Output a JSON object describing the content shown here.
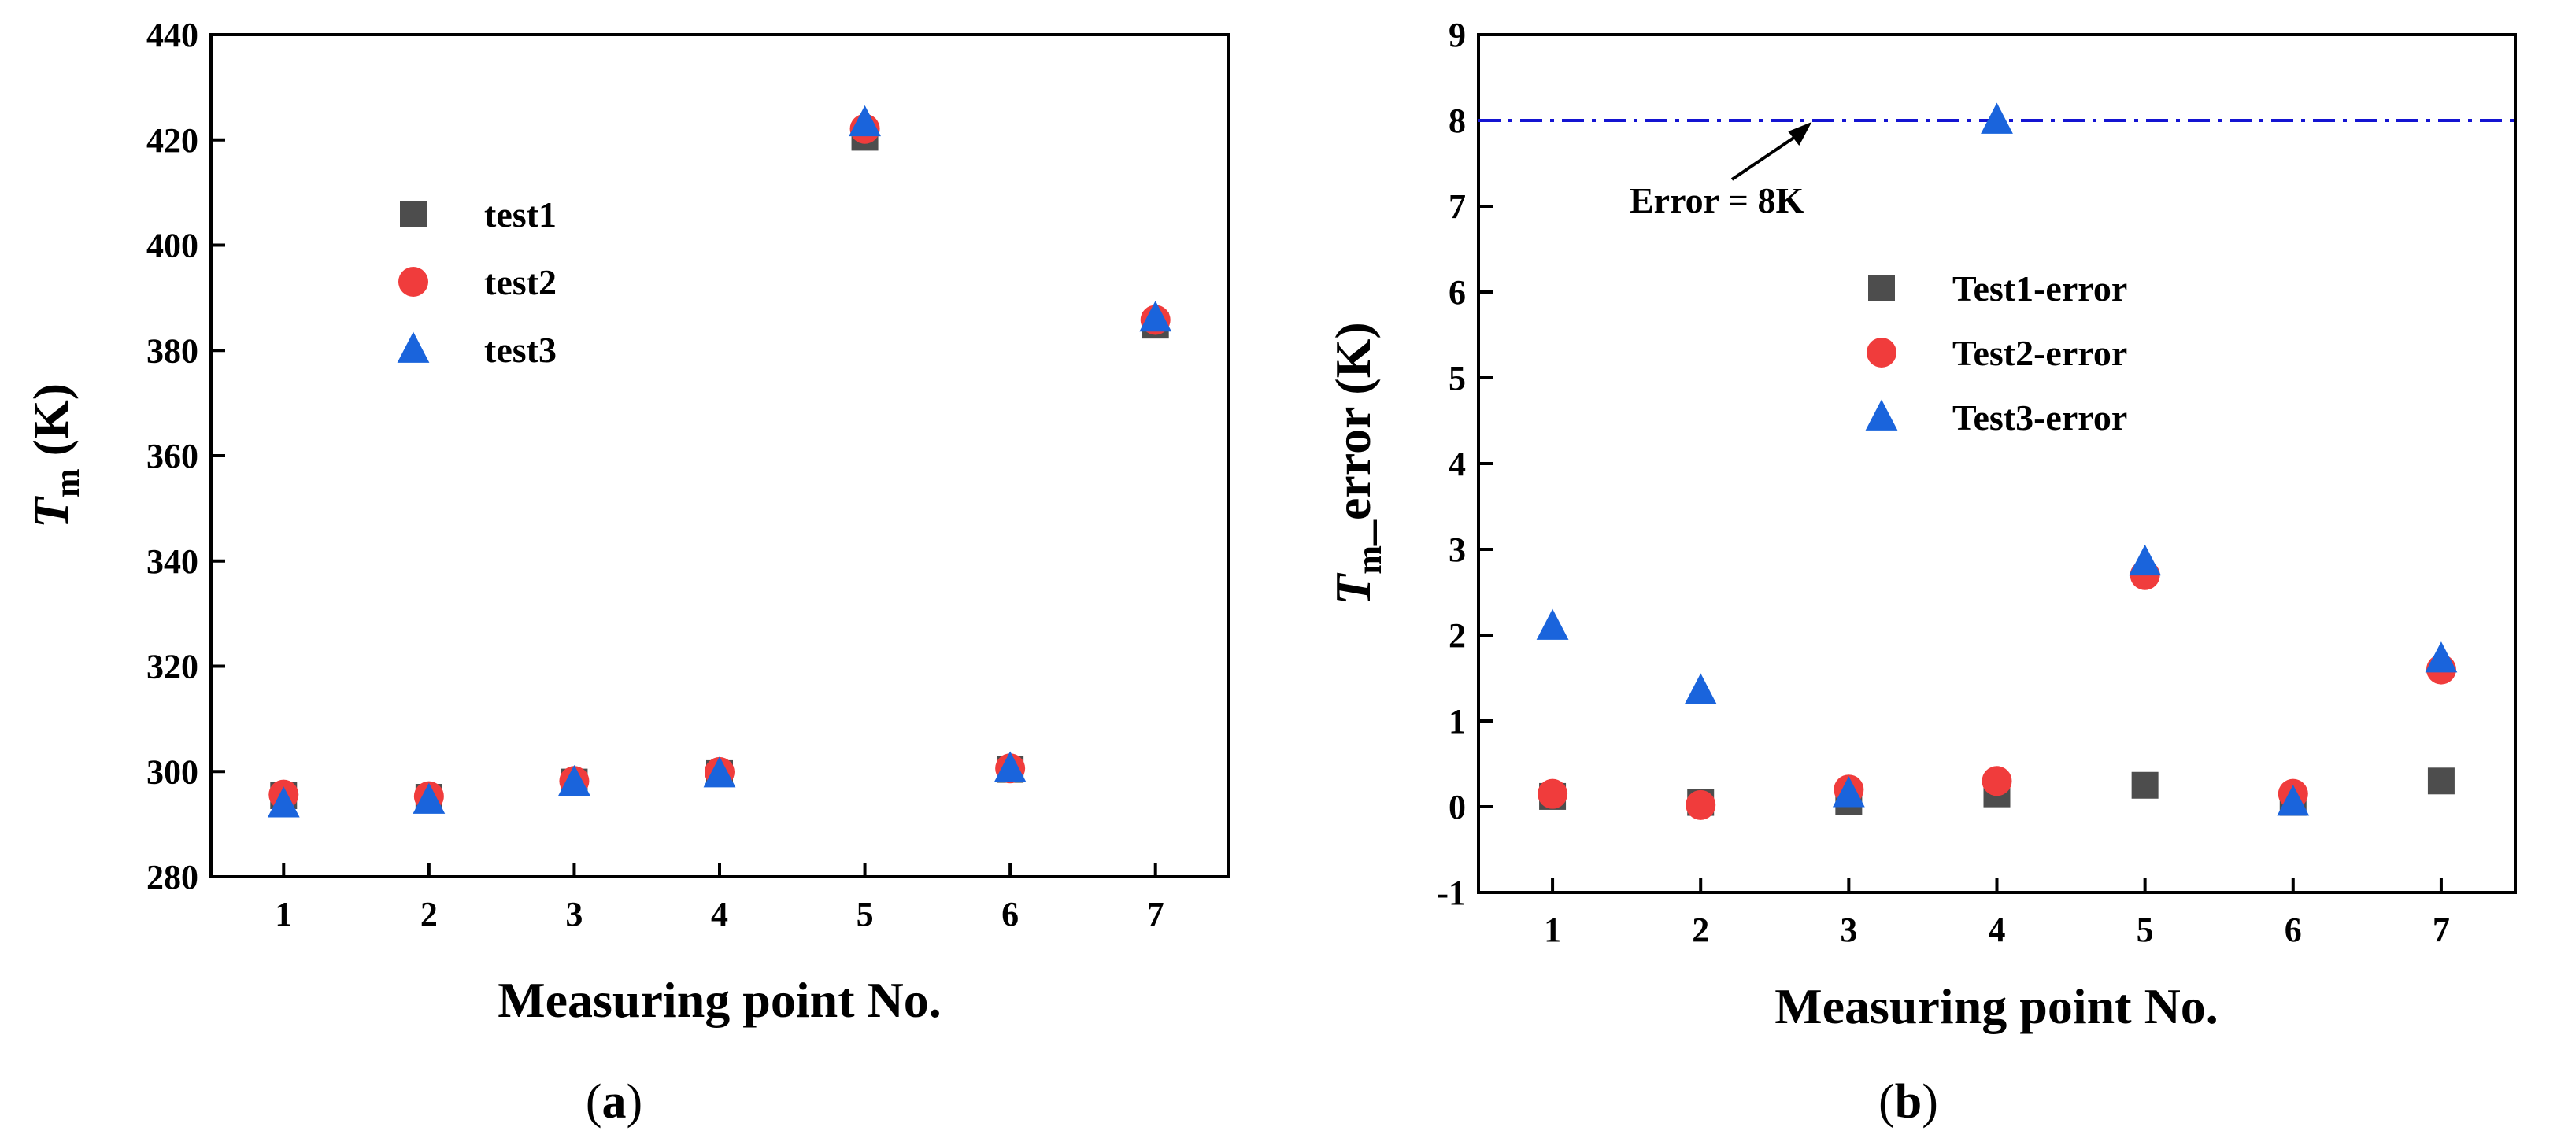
{
  "chart_data": [
    {
      "type": "scatter",
      "panel_label": "a",
      "xlabel": "Measuring point No.",
      "ylabel_main": "T",
      "ylabel_sub": "m",
      "ylabel_unit": " (K)",
      "xlim": [
        0.5,
        7.5
      ],
      "ylim": [
        280,
        440
      ],
      "xticks": [
        1,
        2,
        3,
        4,
        5,
        6,
        7
      ],
      "yticks": [
        280,
        300,
        320,
        340,
        360,
        380,
        400,
        420,
        440
      ],
      "grid": false,
      "legend_placement": "upper-left",
      "series": [
        {
          "name": "test1",
          "marker": "square",
          "color": "#4d4d4d",
          "x": [
            1,
            2,
            3,
            4,
            5,
            6,
            7
          ],
          "y": [
            295.4,
            295.1,
            298.0,
            299.6,
            420.5,
            300.4,
            384.8
          ]
        },
        {
          "name": "test2",
          "marker": "circle",
          "color": "#f03c3c",
          "x": [
            1,
            2,
            3,
            4,
            5,
            6,
            7
          ],
          "y": [
            295.6,
            295.3,
            298.2,
            299.9,
            422.1,
            300.6,
            385.8
          ]
        },
        {
          "name": "test3",
          "marker": "triangle",
          "color": "#1a64dc",
          "x": [
            1,
            2,
            3,
            4,
            5,
            6,
            7
          ],
          "y": [
            293.8,
            294.5,
            297.9,
            299.5,
            423.2,
            300.5,
            386.1
          ]
        }
      ]
    },
    {
      "type": "scatter",
      "panel_label": "b",
      "xlabel": "Measuring point No.",
      "ylabel_main": "T",
      "ylabel_sub": "m",
      "ylabel_unit": "_error (K)",
      "xlim": [
        0.5,
        7.5
      ],
      "ylim": [
        -1,
        9
      ],
      "xticks": [
        1,
        2,
        3,
        4,
        5,
        6,
        7
      ],
      "yticks": [
        -1,
        0,
        1,
        2,
        3,
        4,
        5,
        6,
        7,
        8,
        9
      ],
      "grid": false,
      "legend_placement": "center-left",
      "reference_line": {
        "y": 8,
        "color": "#1414d2",
        "style": "dash-dot",
        "label": "Error = 8K",
        "arrow_to_x": 2.75
      },
      "series": [
        {
          "name": "Test1-error",
          "marker": "square",
          "color": "#4d4d4d",
          "x": [
            1,
            2,
            3,
            4,
            5,
            6,
            7
          ],
          "y": [
            0.12,
            0.05,
            0.06,
            0.15,
            0.25,
            0.05,
            0.3
          ]
        },
        {
          "name": "Test2-error",
          "marker": "circle",
          "color": "#f03c3c",
          "x": [
            1,
            2,
            3,
            4,
            5,
            6,
            7
          ],
          "y": [
            0.15,
            0.02,
            0.2,
            0.3,
            2.7,
            0.15,
            1.6
          ]
        },
        {
          "name": "Test3-error",
          "marker": "triangle",
          "color": "#1a64dc",
          "x": [
            1,
            2,
            3,
            4,
            5,
            6,
            7
          ],
          "y": [
            2.1,
            1.35,
            0.15,
            8.0,
            2.85,
            0.05,
            1.72
          ]
        }
      ]
    }
  ]
}
